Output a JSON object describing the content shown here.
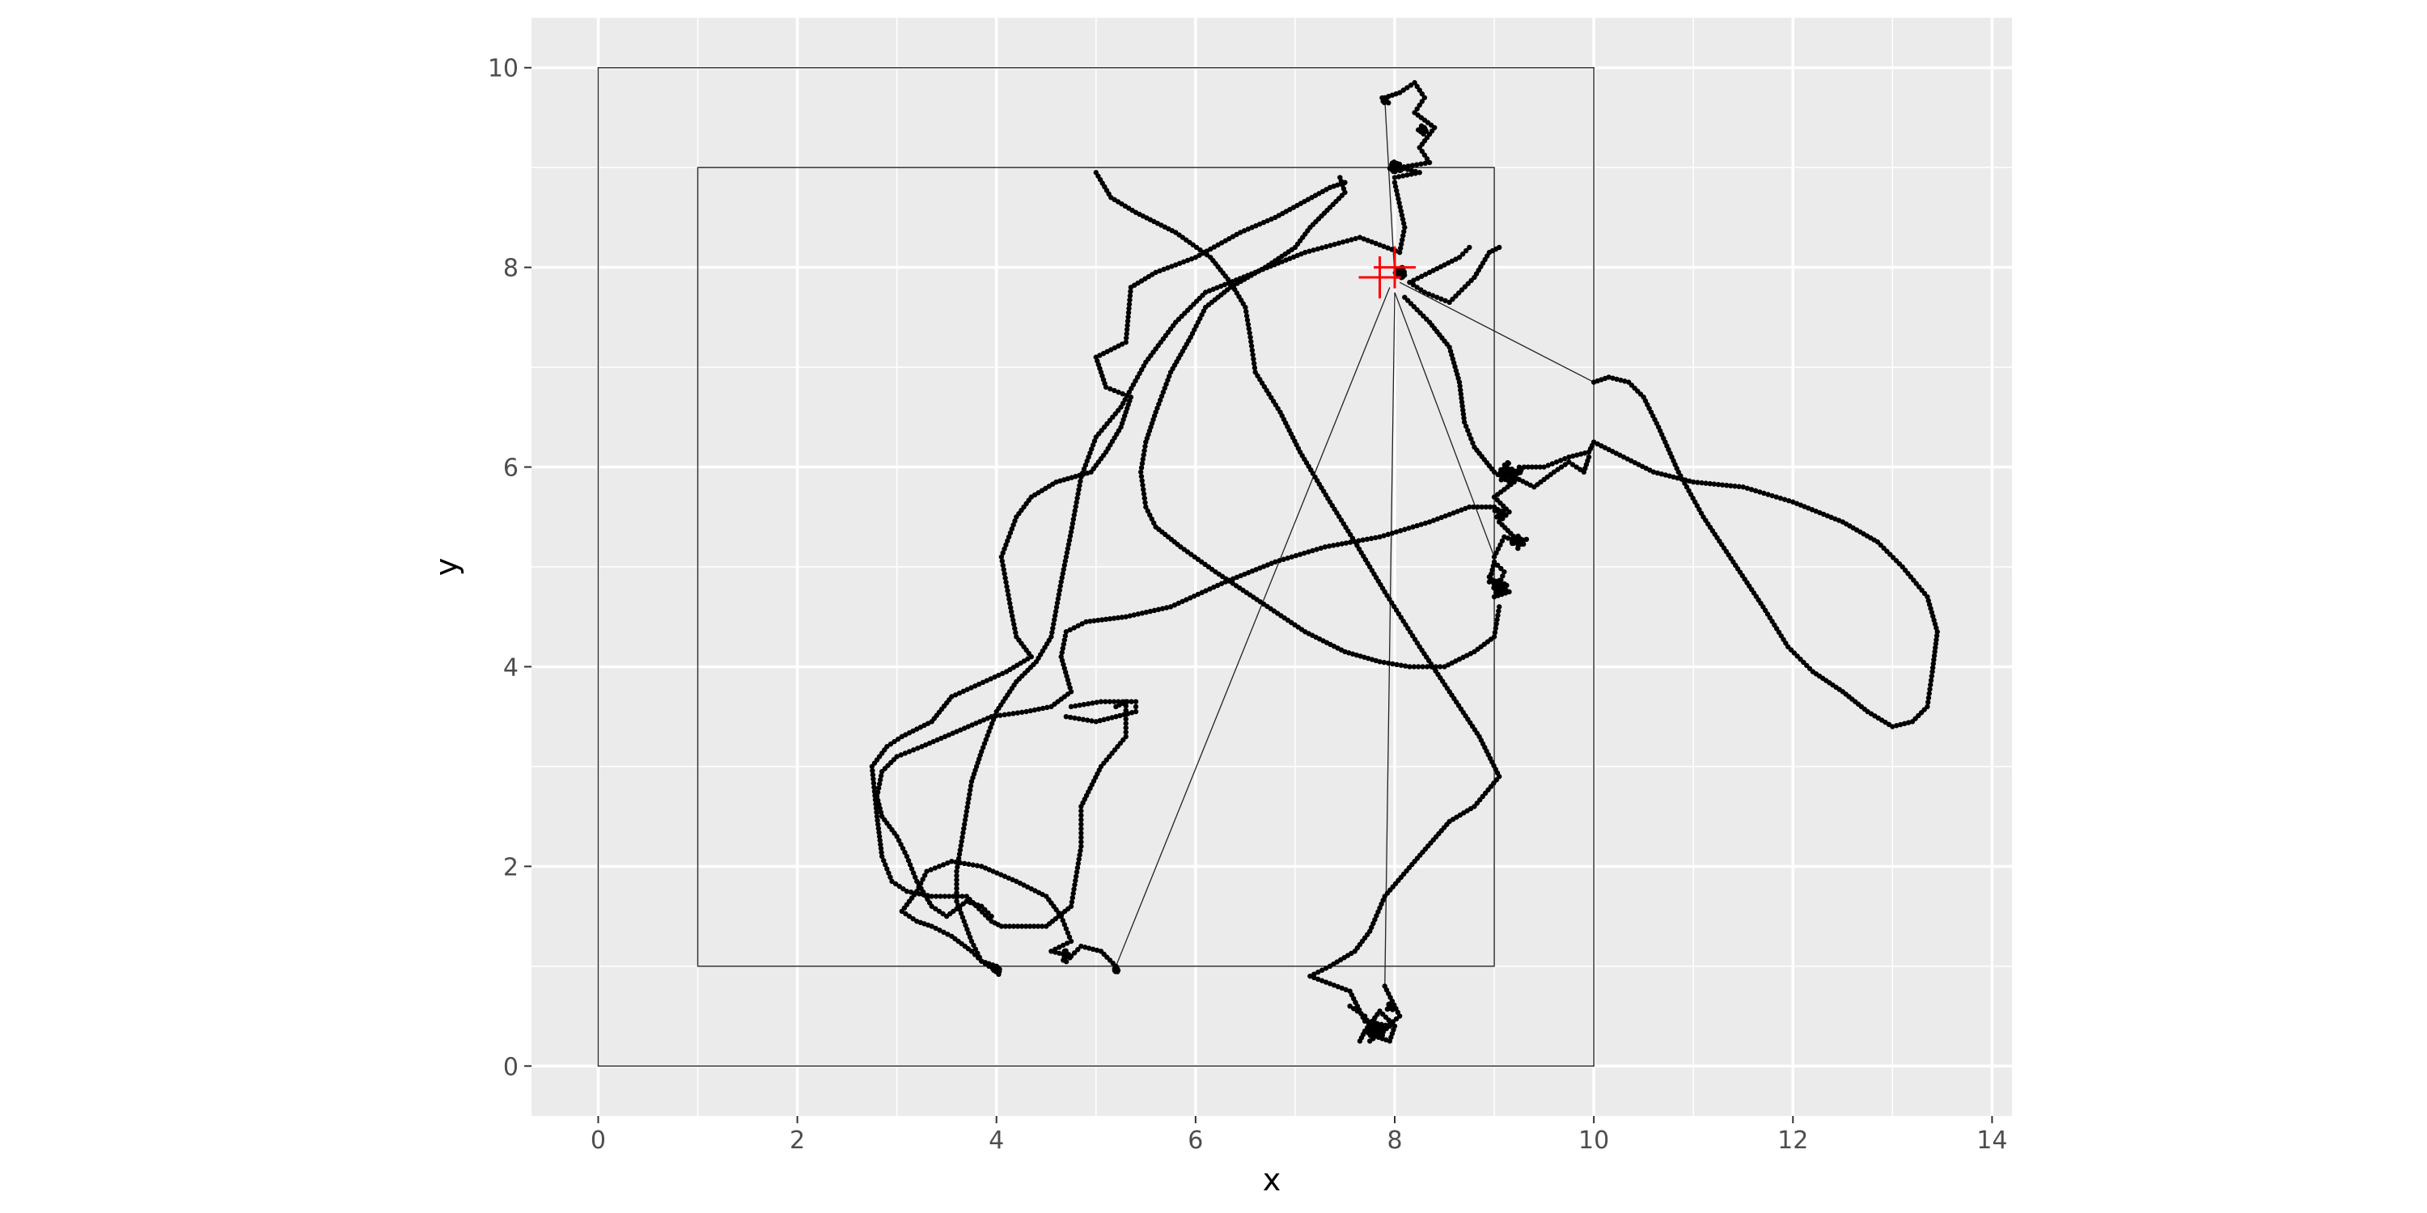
{
  "chart_data": {
    "type": "scatter",
    "title": "",
    "xlabel": "x",
    "ylabel": "y",
    "xlim": [
      -0.67,
      14.2
    ],
    "ylim": [
      -0.5,
      10.5
    ],
    "x_ticks": [
      "0",
      "2",
      "4",
      "6",
      "8",
      "10",
      "12",
      "14"
    ],
    "y_ticks": [
      "0",
      "2",
      "4",
      "6",
      "8",
      "10"
    ],
    "grid": true,
    "colors": {
      "panel": "#EBEBEB",
      "grid": "#FFFFFF",
      "points": "#000000",
      "marker": "#FF0000",
      "rect": "#333333"
    },
    "rectangles": [
      {
        "xmin": 0,
        "xmax": 10,
        "ymin": 0,
        "ymax": 10
      },
      {
        "xmin": 1,
        "xmax": 9,
        "ymin": 1,
        "ymax": 9
      }
    ],
    "markers": [
      {
        "x": 8.0,
        "y": 8.0,
        "shape": "plus"
      },
      {
        "x": 7.85,
        "y": 7.9,
        "shape": "plus"
      }
    ],
    "tracks": [
      [
        [
          7.9,
          9.7
        ],
        [
          8.05,
          9.75
        ],
        [
          8.2,
          9.85
        ],
        [
          8.3,
          9.7
        ],
        [
          8.2,
          9.55
        ],
        [
          8.4,
          9.4
        ],
        [
          8.25,
          9.2
        ],
        [
          8.35,
          9.05
        ],
        [
          8.05,
          9.0
        ],
        [
          8.25,
          8.95
        ],
        [
          8.0,
          8.9
        ]
      ],
      [
        [
          7.5,
          8.85
        ],
        [
          7.35,
          8.8
        ],
        [
          6.8,
          8.5
        ],
        [
          6.45,
          8.35
        ],
        [
          6.0,
          8.1
        ],
        [
          5.6,
          7.95
        ],
        [
          5.35,
          7.8
        ],
        [
          5.3,
          7.25
        ],
        [
          5.0,
          7.1
        ],
        [
          5.1,
          6.8
        ],
        [
          5.35,
          6.7
        ],
        [
          5.25,
          6.4
        ],
        [
          5.1,
          6.15
        ],
        [
          4.95,
          5.95
        ],
        [
          4.6,
          5.85
        ],
        [
          4.35,
          5.7
        ],
        [
          4.2,
          5.5
        ],
        [
          4.05,
          5.1
        ],
        [
          4.15,
          4.55
        ],
        [
          4.2,
          4.3
        ],
        [
          4.35,
          4.1
        ],
        [
          4.1,
          3.95
        ],
        [
          3.55,
          3.7
        ],
        [
          3.35,
          3.45
        ],
        [
          3.05,
          3.3
        ],
        [
          2.9,
          3.2
        ],
        [
          2.75,
          3.0
        ],
        [
          2.8,
          2.5
        ],
        [
          2.85,
          2.1
        ],
        [
          2.95,
          1.85
        ],
        [
          3.1,
          1.75
        ],
        [
          3.35,
          1.7
        ],
        [
          3.7,
          1.7
        ],
        [
          3.95,
          1.45
        ],
        [
          4.05,
          1.4
        ],
        [
          4.5,
          1.4
        ],
        [
          4.75,
          1.6
        ],
        [
          4.85,
          2.2
        ],
        [
          4.85,
          2.6
        ],
        [
          5.05,
          3.0
        ],
        [
          5.3,
          3.3
        ],
        [
          5.3,
          3.65
        ],
        [
          5.2,
          3.6
        ]
      ],
      [
        [
          5.0,
          8.95
        ],
        [
          5.15,
          8.7
        ],
        [
          5.4,
          8.55
        ],
        [
          5.8,
          8.35
        ],
        [
          6.15,
          8.1
        ],
        [
          6.35,
          7.85
        ],
        [
          6.5,
          7.6
        ],
        [
          6.55,
          7.3
        ],
        [
          6.6,
          6.95
        ],
        [
          6.85,
          6.55
        ],
        [
          7.05,
          6.15
        ],
        [
          7.35,
          5.65
        ],
        [
          7.6,
          5.25
        ],
        [
          7.9,
          4.75
        ],
        [
          8.25,
          4.2
        ],
        [
          8.55,
          3.75
        ],
        [
          8.85,
          3.3
        ],
        [
          9.05,
          2.9
        ],
        [
          8.8,
          2.6
        ],
        [
          8.55,
          2.45
        ],
        [
          8.2,
          2.05
        ],
        [
          7.9,
          1.7
        ],
        [
          7.75,
          1.35
        ],
        [
          7.6,
          1.15
        ],
        [
          7.35,
          1.0
        ],
        [
          7.15,
          0.9
        ],
        [
          7.55,
          0.75
        ],
        [
          7.7,
          0.45
        ],
        [
          7.95,
          0.4
        ],
        [
          7.75,
          0.25
        ],
        [
          8.05,
          0.5
        ],
        [
          7.9,
          0.8
        ]
      ],
      [
        [
          8.0,
          8.85
        ],
        [
          8.1,
          8.4
        ],
        [
          8.05,
          8.15
        ],
        [
          7.65,
          8.3
        ],
        [
          7.1,
          8.15
        ],
        [
          6.6,
          7.95
        ],
        [
          6.1,
          7.75
        ],
        [
          5.8,
          7.45
        ],
        [
          5.5,
          7.05
        ],
        [
          5.25,
          6.6
        ],
        [
          5.0,
          6.3
        ],
        [
          4.85,
          5.9
        ],
        [
          4.75,
          5.35
        ],
        [
          4.65,
          4.85
        ],
        [
          4.55,
          4.3
        ],
        [
          4.4,
          4.05
        ],
        [
          4.2,
          3.85
        ],
        [
          4.0,
          3.55
        ],
        [
          3.85,
          3.15
        ],
        [
          3.75,
          2.85
        ],
        [
          3.7,
          2.55
        ],
        [
          3.65,
          2.25
        ],
        [
          3.6,
          1.95
        ],
        [
          3.6,
          1.65
        ],
        [
          3.75,
          1.25
        ],
        [
          3.85,
          1.05
        ],
        [
          4.0,
          0.95
        ]
      ],
      [
        [
          4.0,
          1.0
        ],
        [
          3.85,
          1.05
        ],
        [
          3.75,
          1.15
        ],
        [
          3.55,
          1.3
        ],
        [
          3.35,
          1.4
        ],
        [
          3.2,
          1.45
        ],
        [
          3.05,
          1.55
        ],
        [
          3.2,
          1.75
        ],
        [
          3.3,
          1.95
        ],
        [
          3.55,
          2.05
        ],
        [
          3.85,
          2.0
        ],
        [
          4.2,
          1.85
        ],
        [
          4.5,
          1.7
        ],
        [
          4.65,
          1.5
        ],
        [
          4.75,
          1.25
        ],
        [
          4.55,
          1.15
        ],
        [
          4.75,
          1.1
        ],
        [
          4.85,
          1.2
        ],
        [
          5.05,
          1.15
        ],
        [
          5.2,
          1.0
        ]
      ],
      [
        [
          7.45,
          8.9
        ],
        [
          7.5,
          8.75
        ],
        [
          7.35,
          8.6
        ],
        [
          7.15,
          8.4
        ],
        [
          7.0,
          8.2
        ],
        [
          6.7,
          8.0
        ],
        [
          6.35,
          7.8
        ],
        [
          6.1,
          7.6
        ],
        [
          5.95,
          7.3
        ],
        [
          5.75,
          6.95
        ],
        [
          5.6,
          6.55
        ],
        [
          5.5,
          6.25
        ],
        [
          5.45,
          5.95
        ],
        [
          5.5,
          5.6
        ],
        [
          5.6,
          5.4
        ],
        [
          5.85,
          5.2
        ],
        [
          6.2,
          4.95
        ],
        [
          6.65,
          4.65
        ],
        [
          7.1,
          4.35
        ],
        [
          7.5,
          4.15
        ],
        [
          7.85,
          4.05
        ],
        [
          8.15,
          4.0
        ],
        [
          8.5,
          4.0
        ],
        [
          8.8,
          4.15
        ],
        [
          9.0,
          4.3
        ],
        [
          9.05,
          4.6
        ]
      ],
      [
        [
          3.95,
          1.5
        ],
        [
          3.85,
          1.6
        ],
        [
          3.7,
          1.65
        ],
        [
          3.5,
          1.5
        ],
        [
          3.35,
          1.6
        ],
        [
          3.2,
          1.85
        ],
        [
          3.1,
          2.1
        ],
        [
          3.0,
          2.3
        ],
        [
          2.85,
          2.5
        ],
        [
          2.8,
          2.7
        ],
        [
          2.85,
          2.95
        ],
        [
          3.0,
          3.1
        ],
        [
          3.25,
          3.2
        ],
        [
          3.6,
          3.35
        ],
        [
          3.95,
          3.5
        ],
        [
          4.3,
          3.55
        ],
        [
          4.55,
          3.6
        ],
        [
          4.75,
          3.75
        ],
        [
          4.65,
          4.1
        ],
        [
          4.7,
          4.35
        ],
        [
          4.9,
          4.45
        ],
        [
          5.3,
          4.5
        ],
        [
          5.75,
          4.6
        ],
        [
          6.3,
          4.85
        ],
        [
          6.8,
          5.05
        ],
        [
          7.3,
          5.2
        ],
        [
          7.85,
          5.3
        ],
        [
          8.35,
          5.45
        ],
        [
          8.75,
          5.6
        ],
        [
          9.0,
          5.6
        ]
      ],
      [
        [
          4.7,
          3.5
        ],
        [
          5.0,
          3.45
        ],
        [
          5.4,
          3.55
        ],
        [
          5.4,
          3.65
        ],
        [
          5.05,
          3.65
        ],
        [
          4.75,
          3.6
        ]
      ],
      [
        [
          8.75,
          8.2
        ],
        [
          8.65,
          8.1
        ],
        [
          8.35,
          7.95
        ],
        [
          8.15,
          7.85
        ],
        [
          8.3,
          7.75
        ],
        [
          8.55,
          7.65
        ],
        [
          8.8,
          7.9
        ],
        [
          8.95,
          8.15
        ],
        [
          9.05,
          8.2
        ]
      ],
      [
        [
          8.1,
          7.7
        ],
        [
          8.35,
          7.45
        ],
        [
          8.55,
          7.2
        ],
        [
          8.65,
          6.85
        ],
        [
          8.7,
          6.45
        ],
        [
          8.8,
          6.2
        ],
        [
          9.0,
          5.95
        ],
        [
          9.15,
          5.85
        ],
        [
          9.3,
          6.0
        ],
        [
          9.5,
          6.0
        ],
        [
          9.75,
          6.1
        ],
        [
          9.95,
          6.15
        ],
        [
          10.0,
          6.25
        ],
        [
          10.3,
          6.1
        ],
        [
          10.6,
          5.95
        ],
        [
          11.0,
          5.85
        ],
        [
          11.5,
          5.8
        ],
        [
          12.0,
          5.65
        ],
        [
          12.5,
          5.45
        ],
        [
          12.85,
          5.25
        ],
        [
          13.1,
          5.0
        ],
        [
          13.35,
          4.7
        ],
        [
          13.45,
          4.35
        ],
        [
          13.4,
          3.95
        ],
        [
          13.35,
          3.6
        ],
        [
          13.2,
          3.45
        ],
        [
          13.0,
          3.4
        ],
        [
          12.75,
          3.55
        ],
        [
          12.5,
          3.75
        ],
        [
          12.2,
          3.95
        ],
        [
          11.95,
          4.2
        ],
        [
          11.7,
          4.6
        ],
        [
          11.4,
          5.05
        ],
        [
          11.1,
          5.5
        ],
        [
          10.85,
          5.95
        ],
        [
          10.65,
          6.4
        ],
        [
          10.5,
          6.7
        ],
        [
          10.35,
          6.85
        ],
        [
          10.15,
          6.9
        ],
        [
          10.0,
          6.85
        ]
      ],
      [
        [
          9.0,
          5.1
        ],
        [
          9.1,
          5.3
        ],
        [
          9.25,
          5.25
        ],
        [
          9.05,
          5.45
        ],
        [
          9.15,
          5.55
        ],
        [
          9.0,
          5.7
        ],
        [
          9.2,
          5.85
        ],
        [
          9.1,
          5.95
        ],
        [
          9.4,
          5.8
        ],
        [
          9.6,
          5.95
        ],
        [
          9.75,
          6.05
        ],
        [
          9.9,
          5.95
        ],
        [
          9.95,
          6.1
        ]
      ],
      [
        [
          8.95,
          4.9
        ],
        [
          9.05,
          4.8
        ],
        [
          9.15,
          4.75
        ],
        [
          9.0,
          4.7
        ],
        [
          9.1,
          4.95
        ],
        [
          9.0,
          5.05
        ],
        [
          8.95,
          4.85
        ]
      ],
      [
        [
          7.55,
          0.6
        ],
        [
          7.7,
          0.5
        ],
        [
          7.8,
          0.3
        ],
        [
          7.95,
          0.25
        ],
        [
          8.0,
          0.4
        ],
        [
          7.85,
          0.55
        ],
        [
          7.7,
          0.35
        ],
        [
          7.65,
          0.25
        ]
      ]
    ],
    "clusters": [
      {
        "x": 8.0,
        "y": 9.0,
        "spread": 0.07,
        "count": 30
      },
      {
        "x": 7.9,
        "y": 9.68,
        "spread": 0.05,
        "count": 12
      },
      {
        "x": 8.28,
        "y": 9.38,
        "spread": 0.06,
        "count": 15
      },
      {
        "x": 9.15,
        "y": 5.95,
        "spread": 0.12,
        "count": 40
      },
      {
        "x": 9.25,
        "y": 5.25,
        "spread": 0.08,
        "count": 25
      },
      {
        "x": 9.05,
        "y": 4.8,
        "spread": 0.08,
        "count": 30
      },
      {
        "x": 9.05,
        "y": 5.55,
        "spread": 0.06,
        "count": 15
      },
      {
        "x": 7.8,
        "y": 0.35,
        "spread": 0.1,
        "count": 45
      },
      {
        "x": 7.95,
        "y": 0.6,
        "spread": 0.06,
        "count": 18
      },
      {
        "x": 4.0,
        "y": 0.95,
        "spread": 0.04,
        "count": 15
      },
      {
        "x": 5.2,
        "y": 0.95,
        "spread": 0.03,
        "count": 12
      },
      {
        "x": 4.7,
        "y": 1.1,
        "spread": 0.06,
        "count": 15
      },
      {
        "x": 8.05,
        "y": 7.95,
        "spread": 0.06,
        "count": 25
      }
    ],
    "thin_lines": [
      [
        [
          5.2,
          1.0
        ],
        [
          7.95,
          7.8
        ]
      ],
      [
        [
          7.9,
          0.75
        ],
        [
          8.0,
          7.75
        ]
      ],
      [
        [
          8.0,
          7.9
        ],
        [
          7.9,
          9.7
        ]
      ],
      [
        [
          8.0,
          7.75
        ],
        [
          9.0,
          5.1
        ]
      ],
      [
        [
          8.05,
          7.85
        ],
        [
          10.0,
          6.85
        ]
      ]
    ]
  }
}
